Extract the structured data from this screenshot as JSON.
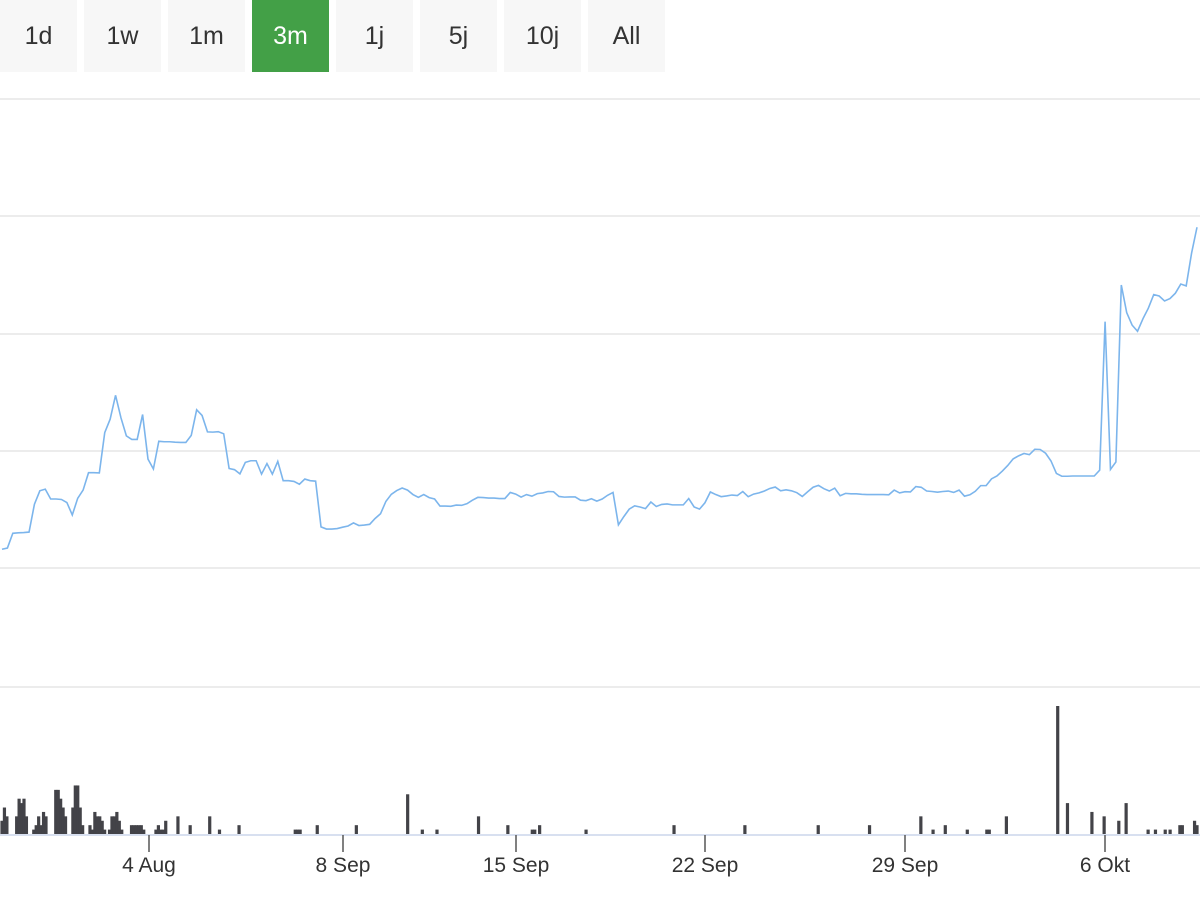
{
  "range_selector": {
    "buttons": [
      {
        "label": "1d",
        "active": false
      },
      {
        "label": "1w",
        "active": false
      },
      {
        "label": "1m",
        "active": false
      },
      {
        "label": "3m",
        "active": true
      },
      {
        "label": "1j",
        "active": false
      },
      {
        "label": "5j",
        "active": false
      },
      {
        "label": "10j",
        "active": false
      },
      {
        "label": "All",
        "active": false
      }
    ],
    "active_color": "#43a047"
  },
  "chart_data": {
    "type": "line",
    "title": "",
    "xlabel": "",
    "ylabel": "",
    "x_tick_labels": [
      "4 Aug",
      "8 Sep",
      "15 Sep",
      "22 Sep",
      "29 Sep",
      "6 Okt"
    ],
    "grid": true,
    "line_color": "#7cb5ec",
    "volume_color": "#434348",
    "series": [
      {
        "values": [
          8,
          8.5,
          14.8,
          15.0,
          15.1,
          15.3,
          27.2,
          32.9,
          33.6,
          29.4,
          29.4,
          29.2,
          27.9,
          22.6,
          29.7,
          33.2,
          40.6,
          40.6,
          40.5,
          57.7,
          63.4,
          73.6,
          64.0,
          56.3,
          54.8,
          54.8,
          65.4,
          46.4,
          42.2,
          54.0,
          53.8,
          53.8,
          53.6,
          53.5,
          53.5,
          56.5,
          67.4,
          65.0,
          58.0,
          57.9,
          58.1,
          57.2,
          42.4,
          41.9,
          40.1,
          45.0,
          45.7,
          45.7,
          40.0,
          44.5,
          40.0,
          45.4,
          37.2,
          37.2,
          36.9,
          35.7,
          37.9,
          37.2,
          37.0,
          17.5,
          16.6,
          16.6,
          16.8,
          17.4,
          17.9,
          19.2,
          18.1,
          18.3,
          18.6,
          21.1,
          23.1,
          28.4,
          31.4,
          33.0,
          34.1,
          33.2,
          31.3,
          30.1,
          31.3,
          30.0,
          29.4,
          26.4,
          26.4,
          26.3,
          26.8,
          26.7,
          27.4,
          28.9,
          30.1,
          30.0,
          29.8,
          29.8,
          29.6,
          29.6,
          32.2,
          31.5,
          30.2,
          31.3,
          30.6,
          31.7,
          32.0,
          32.6,
          32.5,
          30.5,
          30.2,
          30.3,
          30.3,
          28.9,
          28.7,
          29.5,
          28.5,
          29.4,
          31.0,
          32.2,
          18.4,
          21.9,
          25.1,
          26.5,
          26.0,
          25.3,
          28.1,
          26.2,
          27.1,
          27.3,
          26.9,
          26.9,
          26.9,
          29.6,
          26.0,
          25.1,
          27.8,
          32.4,
          31.3,
          30.4,
          30.7,
          31.1,
          30.9,
          32.6,
          30.4,
          31.5,
          32.0,
          32.8,
          33.9,
          34.5,
          32.9,
          33.3,
          32.9,
          32.1,
          30.5,
          32.5,
          34.4,
          35.2,
          33.8,
          32.8,
          34.0,
          30.8,
          31.8,
          31.6,
          31.6,
          31.4,
          31.3,
          31.3,
          31.3,
          31.3,
          31.2,
          33.2,
          32.0,
          32.5,
          32.4,
          34.7,
          34.4,
          32.8,
          32.6,
          32.3,
          32.6,
          32.8,
          32.2,
          33.2,
          30.6,
          31.2,
          32.7,
          35.1,
          35.1,
          38.0,
          39.2,
          41.3,
          43.7,
          46.5,
          47.8,
          48.8,
          48.3,
          50.6,
          50.5,
          48.9,
          45.6,
          40.3,
          39.1,
          39.1,
          39.2,
          39.2,
          39.2,
          39.2,
          39.2,
          41.7,
          105.0,
          42.0,
          45.2,
          120.6,
          108.8,
          103.5,
          100.9,
          106.2,
          110.7,
          116.5,
          115.9,
          113.8,
          114.8,
          117.1,
          121.0,
          120.2,
          134.2,
          145.2
        ]
      }
    ],
    "volume": [
      3,
      6,
      4,
      0,
      0,
      0,
      4,
      8,
      7,
      8,
      4,
      0,
      0,
      1,
      2,
      4,
      2,
      5,
      4,
      0,
      0,
      0,
      10,
      10,
      8,
      6,
      4,
      0,
      0,
      6,
      11,
      11,
      6,
      2,
      0,
      0,
      2,
      1,
      5,
      4,
      4,
      3,
      1,
      0,
      1,
      4,
      4,
      5,
      3,
      1,
      0,
      0,
      0,
      2,
      2,
      2,
      2,
      2,
      1,
      0,
      0,
      0,
      0,
      1,
      2,
      1,
      1,
      3,
      0,
      0,
      0,
      0,
      4,
      0,
      0,
      0,
      0,
      2,
      0,
      0,
      0,
      0,
      0,
      0,
      0,
      4,
      0,
      0,
      0,
      1,
      0,
      0,
      0,
      0,
      0,
      0,
      0,
      2,
      0,
      0,
      0,
      0,
      0,
      0,
      0,
      0,
      0,
      0,
      0,
      0,
      0,
      0,
      0,
      0,
      0,
      0,
      0,
      0,
      0,
      0,
      1,
      1,
      1,
      0,
      0,
      0,
      0,
      0,
      0,
      2,
      0,
      0,
      0,
      0,
      0,
      0,
      0,
      0,
      0,
      0,
      0,
      0,
      0,
      0,
      0,
      2,
      0,
      0,
      0,
      0,
      0,
      0,
      0,
      0,
      0,
      0,
      0,
      0,
      0,
      0,
      0,
      0,
      0,
      0,
      0,
      0,
      9,
      0,
      0,
      0,
      0,
      0,
      1,
      0,
      0,
      0,
      0,
      0,
      1,
      0,
      0,
      0,
      0,
      0,
      0,
      0,
      0,
      0,
      0,
      0,
      0,
      0,
      0,
      0,
      0,
      4,
      0,
      0,
      0,
      0,
      0,
      0,
      0,
      0,
      0,
      0,
      0,
      2,
      0,
      0,
      0,
      0,
      0,
      0,
      0,
      0,
      0,
      1,
      1,
      0,
      2,
      0,
      0,
      0,
      0,
      0,
      0,
      0,
      0,
      0,
      0,
      0,
      0,
      0,
      0,
      0,
      0,
      0,
      0,
      1,
      0,
      0,
      0,
      0,
      0,
      0,
      0,
      0,
      0,
      0,
      0,
      0,
      0,
      0,
      0,
      0,
      0,
      0,
      0,
      0,
      0,
      0,
      0,
      0,
      0,
      0,
      0,
      0,
      0,
      0,
      0,
      0,
      0,
      0,
      0,
      2,
      0,
      0,
      0,
      0,
      0,
      0,
      0,
      0,
      0,
      0,
      0,
      0,
      0,
      0,
      0,
      0,
      0,
      0,
      0,
      0,
      0,
      0,
      0,
      0,
      0,
      0,
      0,
      0,
      2,
      0,
      0,
      0,
      0,
      0,
      0,
      0,
      0,
      0,
      0,
      0,
      0,
      0,
      0,
      0,
      0,
      0,
      0,
      0,
      0,
      0,
      0,
      0,
      0,
      0,
      0,
      0,
      0,
      0,
      2,
      0,
      0,
      0,
      0,
      0,
      0,
      0,
      0,
      0,
      0,
      0,
      0,
      0,
      0,
      0,
      0,
      0,
      0,
      0,
      0,
      2,
      0,
      0,
      0,
      0,
      0,
      0,
      0,
      0,
      0,
      0,
      0,
      0,
      0,
      0,
      0,
      0,
      0,
      0,
      0,
      0,
      4,
      0,
      0,
      0,
      0,
      1,
      0,
      0,
      0,
      0,
      2,
      0,
      0,
      0,
      0,
      0,
      0,
      0,
      0,
      1,
      0,
      0,
      0,
      0,
      0,
      0,
      0,
      1,
      1,
      0,
      0,
      0,
      0,
      0,
      0,
      4,
      0,
      0,
      0,
      0,
      0,
      0,
      0,
      0,
      0,
      0,
      0,
      0,
      0,
      0,
      0,
      0,
      0,
      0,
      0,
      0,
      29,
      0,
      0,
      0,
      7,
      0,
      0,
      0,
      0,
      0,
      0,
      0,
      0,
      0,
      5,
      0,
      0,
      0,
      0,
      4,
      0,
      0,
      0,
      0,
      0,
      3,
      0,
      0,
      7,
      0,
      0,
      0,
      0,
      0,
      0,
      0,
      0,
      1,
      0,
      0,
      1,
      0,
      0,
      0,
      1,
      0,
      1,
      0,
      0,
      0,
      2,
      2,
      0,
      0,
      0,
      0,
      3,
      2
    ]
  }
}
